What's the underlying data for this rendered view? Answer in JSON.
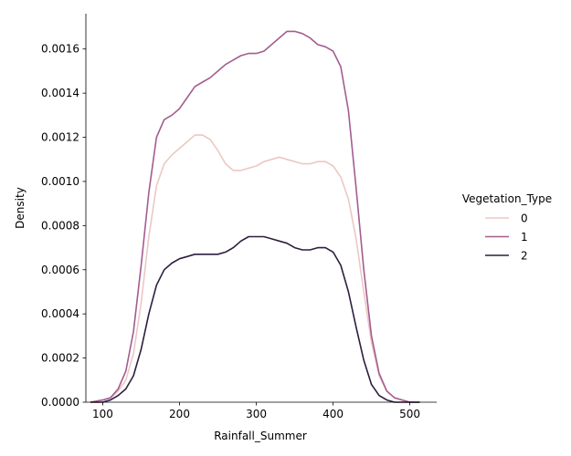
{
  "chart_data": {
    "type": "line",
    "subtype": "kde",
    "xlabel": "Rainfall_Summer",
    "ylabel": "Density",
    "xlim": [
      78,
      535
    ],
    "ylim": [
      0,
      0.00176
    ],
    "xticks": [
      100,
      200,
      300,
      400,
      500
    ],
    "yticks": [
      0.0,
      0.0002,
      0.0004,
      0.0006,
      0.0008,
      0.001,
      0.0012,
      0.0014,
      0.0016
    ],
    "ytick_labels": [
      "0.0000",
      "0.0002",
      "0.0004",
      "0.0006",
      "0.0008",
      "0.0010",
      "0.0012",
      "0.0014",
      "0.0016"
    ],
    "grid": false,
    "legend": {
      "title": "Vegetation_Type",
      "position": "right"
    },
    "series": [
      {
        "name": "0",
        "color": "#ecc8c4",
        "x": [
          84,
          100,
          110,
          120,
          130,
          140,
          150,
          160,
          170,
          180,
          190,
          200,
          210,
          220,
          230,
          240,
          250,
          260,
          270,
          280,
          290,
          300,
          310,
          320,
          330,
          340,
          350,
          360,
          370,
          380,
          390,
          400,
          410,
          420,
          430,
          440,
          450,
          460,
          470,
          480,
          490,
          500,
          513
        ],
        "values": [
          0.0,
          1e-05,
          2e-05,
          5e-05,
          0.0001,
          0.00022,
          0.00045,
          0.00075,
          0.00098,
          0.00108,
          0.00112,
          0.00115,
          0.00118,
          0.00121,
          0.00121,
          0.00119,
          0.00114,
          0.00108,
          0.00105,
          0.00105,
          0.00106,
          0.00107,
          0.00109,
          0.0011,
          0.00111,
          0.0011,
          0.00109,
          0.00108,
          0.00108,
          0.00109,
          0.00109,
          0.00107,
          0.00102,
          0.00092,
          0.00074,
          0.0005,
          0.00027,
          0.00012,
          5e-05,
          2e-05,
          1e-05,
          0.0,
          0.0
        ]
      },
      {
        "name": "1",
        "color": "#a35d8f",
        "x": [
          84,
          100,
          110,
          120,
          130,
          140,
          150,
          160,
          170,
          180,
          190,
          200,
          210,
          220,
          230,
          240,
          250,
          260,
          270,
          280,
          290,
          300,
          310,
          320,
          330,
          340,
          350,
          360,
          370,
          380,
          390,
          400,
          410,
          420,
          430,
          440,
          450,
          460,
          470,
          480,
          490,
          500,
          513
        ],
        "values": [
          0.0,
          1e-05,
          2e-05,
          6e-05,
          0.00014,
          0.00032,
          0.00062,
          0.00095,
          0.0012,
          0.00128,
          0.0013,
          0.00133,
          0.00138,
          0.00143,
          0.00145,
          0.00147,
          0.0015,
          0.00153,
          0.00155,
          0.00157,
          0.00158,
          0.00158,
          0.00159,
          0.00162,
          0.00165,
          0.00168,
          0.00168,
          0.00167,
          0.00165,
          0.00162,
          0.00161,
          0.00159,
          0.00152,
          0.00132,
          0.00097,
          0.0006,
          0.0003,
          0.00013,
          5e-05,
          2e-05,
          1e-05,
          0.0,
          0.0
        ]
      },
      {
        "name": "2",
        "color": "#2d1e3e",
        "x": [
          84,
          100,
          110,
          120,
          130,
          140,
          150,
          160,
          170,
          180,
          190,
          200,
          210,
          220,
          230,
          240,
          250,
          260,
          270,
          280,
          290,
          300,
          310,
          320,
          330,
          340,
          350,
          360,
          370,
          380,
          390,
          400,
          410,
          420,
          430,
          440,
          450,
          460,
          470,
          480,
          490,
          500,
          513
        ],
        "values": [
          0.0,
          0.0,
          1e-05,
          3e-05,
          6e-05,
          0.00012,
          0.00024,
          0.0004,
          0.00053,
          0.0006,
          0.00063,
          0.00065,
          0.00066,
          0.00067,
          0.00067,
          0.00067,
          0.00067,
          0.00068,
          0.0007,
          0.00073,
          0.00075,
          0.00075,
          0.00075,
          0.00074,
          0.00073,
          0.00072,
          0.0007,
          0.00069,
          0.00069,
          0.0007,
          0.0007,
          0.00068,
          0.00062,
          0.0005,
          0.00034,
          0.00019,
          8e-05,
          3e-05,
          1e-05,
          0.0,
          0.0,
          0.0,
          0.0
        ]
      }
    ]
  }
}
